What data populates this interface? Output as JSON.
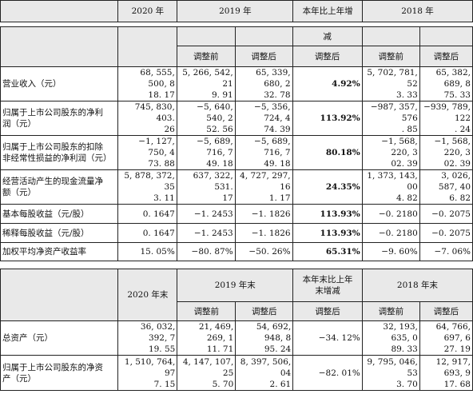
{
  "top_header": [
    "",
    "2020 年",
    "2019 年",
    "本年比上年增",
    "2018 年"
  ],
  "main_header": {
    "change_top": "减",
    "sub": [
      "调整前",
      "调整后",
      "调整后",
      "调整前",
      "调整后"
    ]
  },
  "rows": [
    {
      "label": "营业收入（元）",
      "v2020": "68, 555, 500, 8\n18. 17",
      "v2019a": "5, 266, 542, 21\n9. 91",
      "v2019b": "65, 339, 680, 2\n32. 78",
      "chg": "4.92%",
      "v2018a": "5, 702, 781, 52\n3. 33",
      "v2018b": "65, 382, 689, 8\n75. 33"
    },
    {
      "label": "归属于上市公司股东的净利\n润（元）",
      "v2020": "745, 830, 403.\n26",
      "v2019a": "−5, 640, 540, 2\n52. 56",
      "v2019b": "−5, 356, 724, 4\n74. 39",
      "chg": "113.92%",
      "v2018a": "−987, 357, 576\n. 85",
      "v2018b": "−939, 789, 122\n. 24"
    },
    {
      "label": "归属于上市公司股东的扣除\n非经常性损益的净利润（元）",
      "v2020": "−1, 127, 750, 4\n73. 88",
      "v2019a": "−5, 689, 716, 7\n49. 18",
      "v2019b": "−5, 689, 716, 7\n49. 18",
      "chg": "80.18%",
      "v2018a": "−1, 568, 220, 3\n02. 39",
      "v2018b": "−1, 568, 220, 3\n02. 39"
    },
    {
      "label": "经营活动产生的现金流量净\n额（元）",
      "v2020": "5, 878, 372, 35\n3. 11",
      "v2019a": "637, 322, 531.\n17",
      "v2019b": "4, 727, 297, 16\n1. 17",
      "chg": "24.35%",
      "v2018a": "1, 373, 143, 00\n4. 82",
      "v2018b": "3, 026, 587, 40\n6. 82"
    },
    {
      "label": "基本每股收益（元/股）",
      "v2020": "0. 1647",
      "v2019a": "−1. 2453",
      "v2019b": "−1. 1826",
      "chg": "113.93%",
      "v2018a": "−0. 2180",
      "v2018b": "−0. 2075"
    },
    {
      "label": "稀释每股收益（元/股）",
      "v2020": "0. 1647",
      "v2019a": "−1. 2453",
      "v2019b": "−1. 1826",
      "chg": "113.93%",
      "v2018a": "−0. 2180",
      "v2018b": "−0. 2075"
    },
    {
      "label": "加权平均净资产收益率",
      "v2020": "15. 05%",
      "v2019a": "−80. 87%",
      "v2019b": "−50. 26%",
      "chg": "65.31%",
      "v2018a": "−9. 60%",
      "v2018b": "−7. 06%"
    }
  ],
  "bs_header": {
    "col2020": "2020 年末",
    "col2019": "2019 年末",
    "change": "本年末比上年\n末增减",
    "col2018": "2018 年末",
    "sub": [
      "调整前",
      "调整后",
      "调整后",
      "调整前",
      "调整后"
    ]
  },
  "bs_rows": [
    {
      "label": "总资产（元）",
      "v2020": "36, 032, 392, 7\n19. 55",
      "v2019a": "21, 469, 269, 1\n11. 71",
      "v2019b": "54, 692, 948, 8\n95. 24",
      "chg": "−34. 12%",
      "v2018a": "32, 193, 635, 0\n89. 33",
      "v2018b": "64, 766, 697, 6\n27. 19"
    },
    {
      "label": "归属于上市公司股东的净资\n产（元）",
      "v2020": "1, 510, 764, 97\n7. 15",
      "v2019a": "4, 147, 107, 25\n5. 70",
      "v2019b": "8, 397, 506, 04\n2. 61",
      "chg": "−82. 01%",
      "v2018a": "9, 795, 046, 53\n3. 70",
      "v2018b": "12, 917, 693, 9\n17. 68"
    }
  ]
}
